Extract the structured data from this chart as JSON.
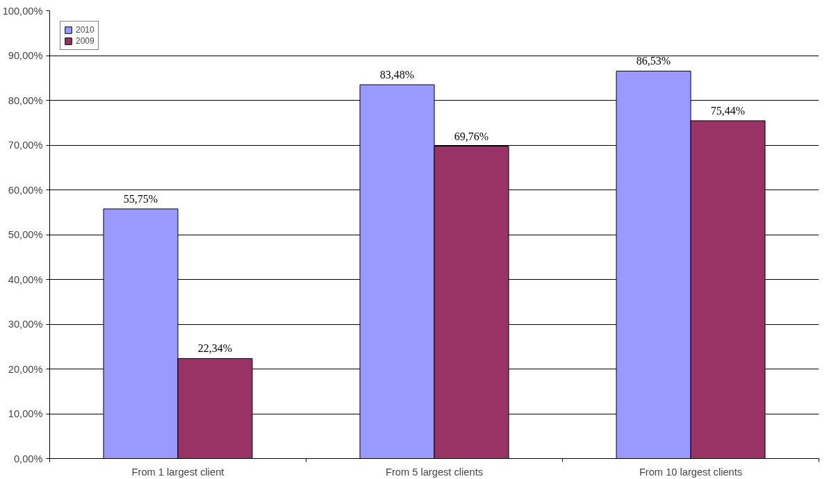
{
  "chart_data": {
    "type": "bar",
    "categories": [
      "From 1 largest client",
      "From 5 largest clients",
      "From 10 largest clients"
    ],
    "series": [
      {
        "name": "2010",
        "color": "#9999ff",
        "values": [
          55.75,
          83.48,
          86.53
        ],
        "value_labels": [
          "55,75%",
          "83,48%",
          "86,53%"
        ]
      },
      {
        "name": "2009",
        "color": "#993366",
        "values": [
          22.34,
          69.76,
          75.44
        ],
        "value_labels": [
          "22,34%",
          "69,76%",
          "75,44%"
        ]
      }
    ],
    "ylim": [
      0,
      100
    ],
    "yticks": [
      {
        "value": 0,
        "label": "0,00%"
      },
      {
        "value": 10,
        "label": "10,00%"
      },
      {
        "value": 20,
        "label": "20,00%"
      },
      {
        "value": 30,
        "label": "30,00%"
      },
      {
        "value": 40,
        "label": "40,00%"
      },
      {
        "value": 50,
        "label": "50,00%"
      },
      {
        "value": 60,
        "label": "60,00%"
      },
      {
        "value": 70,
        "label": "70,00%"
      },
      {
        "value": 80,
        "label": "80,00%"
      },
      {
        "value": 90,
        "label": "90,00%"
      },
      {
        "value": 100,
        "label": "100,00%"
      }
    ],
    "grid": "y",
    "legend": "top left"
  }
}
